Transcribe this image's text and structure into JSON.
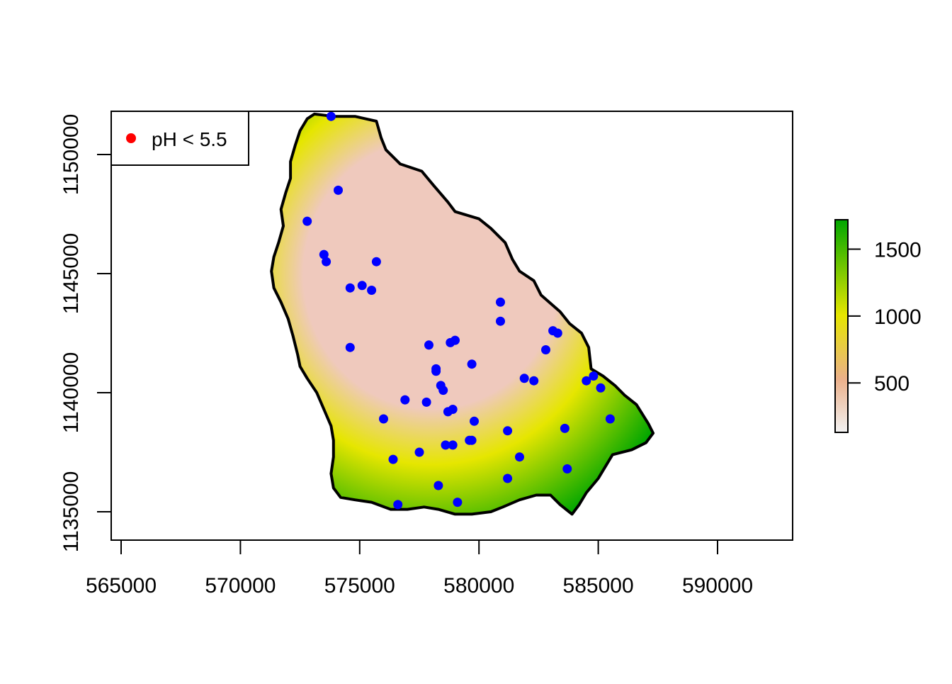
{
  "map": {
    "type": "scatter",
    "x_range": [
      564000,
      592800
    ],
    "y_range": [
      1133800,
      1152000
    ],
    "x_ticks": [
      {
        "value": 565000,
        "label": "565000"
      },
      {
        "value": 570000,
        "label": "570000"
      },
      {
        "value": 575000,
        "label": "575000"
      },
      {
        "value": 580000,
        "label": "580000"
      },
      {
        "value": 585000,
        "label": "585000"
      },
      {
        "value": 590000,
        "label": "590000"
      }
    ],
    "y_ticks": [
      {
        "value": 1135000,
        "label": "1135000"
      },
      {
        "value": 1140000,
        "label": "1140000"
      },
      {
        "value": 1145000,
        "label": "1145000"
      },
      {
        "value": 1150000,
        "label": "1150000"
      }
    ],
    "legend": {
      "position": "top-left",
      "label": "pH < 5.5",
      "color": "#ff0000"
    },
    "colorbar": {
      "range": [
        130,
        1720
      ],
      "ticks": [
        {
          "value": 500,
          "label": "500"
        },
        {
          "value": 1000,
          "label": "1000"
        },
        {
          "value": 1500,
          "label": "1500"
        }
      ],
      "colors": {
        "low": "#f2f2f2",
        "mid_low": "#ebb08a",
        "mid": "#e6e600",
        "high": "#00a600"
      }
    },
    "colors": {
      "points": "#0000ff",
      "boundary": "#000000",
      "interior_low": "#efc9bd",
      "interior_mid": "#e6e600",
      "interior_high": "#00a600"
    },
    "boundary": [
      [
        573100,
        1151700
      ],
      [
        573900,
        1151600
      ],
      [
        574800,
        1151600
      ],
      [
        575700,
        1151400
      ],
      [
        575900,
        1150700
      ],
      [
        576100,
        1150200
      ],
      [
        576700,
        1149600
      ],
      [
        577600,
        1149300
      ],
      [
        578100,
        1148700
      ],
      [
        578700,
        1148000
      ],
      [
        579000,
        1147600
      ],
      [
        580000,
        1147300
      ],
      [
        580500,
        1146900
      ],
      [
        581100,
        1146300
      ],
      [
        581400,
        1145600
      ],
      [
        581700,
        1145100
      ],
      [
        582300,
        1144700
      ],
      [
        582600,
        1144100
      ],
      [
        583400,
        1143400
      ],
      [
        583800,
        1142900
      ],
      [
        584300,
        1142500
      ],
      [
        584600,
        1141900
      ],
      [
        584700,
        1141000
      ],
      [
        585200,
        1140700
      ],
      [
        585700,
        1140300
      ],
      [
        586100,
        1139900
      ],
      [
        586600,
        1139500
      ],
      [
        587100,
        1138700
      ],
      [
        587300,
        1138300
      ],
      [
        587000,
        1137900
      ],
      [
        586400,
        1137600
      ],
      [
        585600,
        1137400
      ],
      [
        585300,
        1136900
      ],
      [
        585000,
        1136400
      ],
      [
        584500,
        1135800
      ],
      [
        584200,
        1135300
      ],
      [
        583900,
        1134900
      ],
      [
        583400,
        1135300
      ],
      [
        583000,
        1135700
      ],
      [
        582400,
        1135700
      ],
      [
        581700,
        1135500
      ],
      [
        581000,
        1135200
      ],
      [
        580500,
        1135000
      ],
      [
        579700,
        1134900
      ],
      [
        579000,
        1134900
      ],
      [
        578300,
        1135100
      ],
      [
        577700,
        1135200
      ],
      [
        577000,
        1135100
      ],
      [
        576300,
        1135100
      ],
      [
        575500,
        1135400
      ],
      [
        574800,
        1135500
      ],
      [
        574200,
        1135600
      ],
      [
        573900,
        1136000
      ],
      [
        573800,
        1136600
      ],
      [
        573900,
        1137300
      ],
      [
        573900,
        1138000
      ],
      [
        573800,
        1138600
      ],
      [
        573500,
        1139300
      ],
      [
        573200,
        1140000
      ],
      [
        572800,
        1140600
      ],
      [
        572500,
        1141100
      ],
      [
        572400,
        1141600
      ],
      [
        572200,
        1142400
      ],
      [
        572000,
        1143100
      ],
      [
        571700,
        1143800
      ],
      [
        571400,
        1144400
      ],
      [
        571300,
        1145100
      ],
      [
        571400,
        1145700
      ],
      [
        571600,
        1146300
      ],
      [
        571800,
        1147000
      ],
      [
        571700,
        1147700
      ],
      [
        571900,
        1148400
      ],
      [
        572100,
        1149000
      ],
      [
        572100,
        1149700
      ],
      [
        572300,
        1150400
      ],
      [
        572500,
        1151000
      ],
      [
        572800,
        1151500
      ]
    ],
    "points": [
      [
        573800,
        1151600
      ],
      [
        574100,
        1148500
      ],
      [
        572800,
        1147200
      ],
      [
        573500,
        1145800
      ],
      [
        573600,
        1145500
      ],
      [
        575700,
        1145500
      ],
      [
        574600,
        1144400
      ],
      [
        575100,
        1144500
      ],
      [
        575500,
        1144300
      ],
      [
        574600,
        1141900
      ],
      [
        580900,
        1143800
      ],
      [
        580900,
        1143000
      ],
      [
        583100,
        1142600
      ],
      [
        583300,
        1142500
      ],
      [
        582800,
        1141800
      ],
      [
        579000,
        1142200
      ],
      [
        578800,
        1142100
      ],
      [
        577900,
        1142000
      ],
      [
        579700,
        1141200
      ],
      [
        578200,
        1141000
      ],
      [
        578200,
        1140900
      ],
      [
        581900,
        1140600
      ],
      [
        582300,
        1140500
      ],
      [
        584500,
        1140500
      ],
      [
        584800,
        1140700
      ],
      [
        585100,
        1140200
      ],
      [
        578400,
        1140300
      ],
      [
        578500,
        1140100
      ],
      [
        576900,
        1139700
      ],
      [
        577800,
        1139600
      ],
      [
        578900,
        1139300
      ],
      [
        578700,
        1139200
      ],
      [
        576000,
        1138900
      ],
      [
        579800,
        1138800
      ],
      [
        585500,
        1138900
      ],
      [
        581200,
        1138400
      ],
      [
        583600,
        1138500
      ],
      [
        579600,
        1138000
      ],
      [
        579700,
        1138000
      ],
      [
        578600,
        1137800
      ],
      [
        578900,
        1137800
      ],
      [
        577500,
        1137500
      ],
      [
        576400,
        1137200
      ],
      [
        581700,
        1137300
      ],
      [
        583700,
        1136800
      ],
      [
        581200,
        1136400
      ],
      [
        578300,
        1136100
      ],
      [
        579100,
        1135400
      ],
      [
        576600,
        1135300
      ]
    ]
  }
}
